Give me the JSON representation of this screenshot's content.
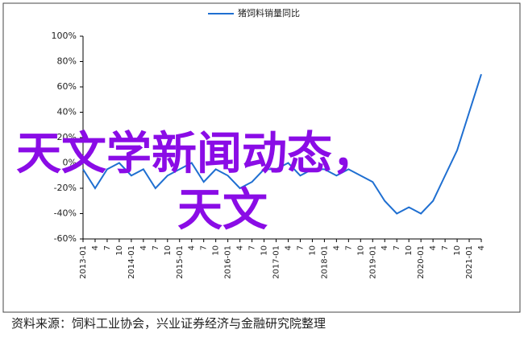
{
  "chart_data": {
    "type": "line",
    "title": "猪饲料销量同比",
    "categories": [
      "2013-01",
      "4",
      "7",
      "10",
      "2014-01",
      "4",
      "7",
      "10",
      "2015-01",
      "4",
      "7",
      "10",
      "2016-01",
      "4",
      "7",
      "10",
      "2017-01",
      "4",
      "7",
      "10",
      "2018-01",
      "4",
      "7",
      "10",
      "2019-01",
      "4",
      "7",
      "10",
      "2020-01",
      "4",
      "7",
      "10",
      "2021-01",
      "4"
    ],
    "series": [
      {
        "name": "猪饲料销量同比",
        "color": "#1f6fd1",
        "values": [
          -5,
          -20,
          -5,
          0,
          -10,
          -5,
          -20,
          -10,
          -5,
          0,
          -15,
          -5,
          -10,
          -20,
          -15,
          -5,
          -5,
          0,
          -10,
          -5,
          -5,
          -10,
          -5,
          -10,
          -15,
          -30,
          -40,
          -35,
          -40,
          -30,
          -10,
          10,
          40,
          70
        ]
      }
    ],
    "ylim": [
      -60,
      100
    ],
    "yticks": [
      {
        "value": -60,
        "label": "-60%"
      },
      {
        "value": -40,
        "label": "-40%"
      },
      {
        "value": -20,
        "label": "-20%"
      },
      {
        "value": 0,
        "label": "0%"
      },
      {
        "value": 20,
        "label": "20%"
      },
      {
        "value": 40,
        "label": "40%"
      },
      {
        "value": 60,
        "label": "60%"
      },
      {
        "value": 80,
        "label": "80%"
      },
      {
        "value": 100,
        "label": "100%"
      }
    ],
    "source": "资料来源：饲料工业协会，兴业证券经济与金融研究院整理"
  },
  "overlay_text": [
    "天文学新闻动态，",
    "天文"
  ]
}
